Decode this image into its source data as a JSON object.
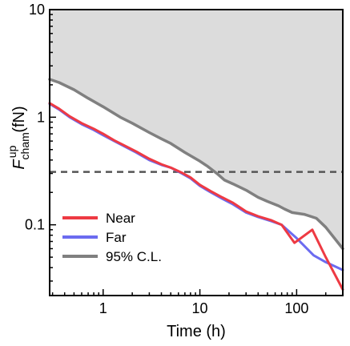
{
  "chart_data": {
    "type": "line",
    "xlabel": "Time (h)",
    "ylabel": {
      "symbol": "F",
      "superscript": "up",
      "subscript": "cham",
      "unit": "(fN)"
    },
    "x_scale": "log",
    "y_scale": "log",
    "xlim": [
      0.28,
      300
    ],
    "ylim": [
      0.022,
      10
    ],
    "x_ticks": [
      {
        "value": 1,
        "label": "1"
      },
      {
        "value": 10,
        "label": "10"
      },
      {
        "value": 100,
        "label": "100"
      }
    ],
    "y_ticks": [
      {
        "value": 0.1,
        "label": "0.1"
      },
      {
        "value": 1,
        "label": "1"
      },
      {
        "value": 10,
        "label": "10"
      }
    ],
    "grid": false,
    "legend_position": "bottom-left",
    "excluded_region": {
      "description_color": "#dcdcdc",
      "bound_series": "95% C.L."
    },
    "reference_line": {
      "y": 0.31,
      "style": "dashed",
      "color": "#555555"
    },
    "series": [
      {
        "name": "Far",
        "color": "#6b6bf0",
        "x": [
          0.28,
          0.35,
          0.45,
          0.6,
          0.8,
          1.0,
          1.3,
          1.7,
          2.2,
          3.0,
          4.0,
          5.0,
          6.5,
          8.0,
          10,
          13,
          17,
          22,
          30,
          40,
          55,
          70,
          100,
          150,
          200,
          300
        ],
        "y": [
          1.33,
          1.18,
          1.0,
          0.86,
          0.76,
          0.68,
          0.6,
          0.53,
          0.47,
          0.4,
          0.36,
          0.34,
          0.3,
          0.27,
          0.23,
          0.2,
          0.175,
          0.155,
          0.13,
          0.118,
          0.108,
          0.1,
          0.075,
          0.052,
          0.045,
          0.038
        ]
      },
      {
        "name": "Near",
        "color": "#ee3a43",
        "x": [
          0.28,
          0.35,
          0.45,
          0.6,
          0.8,
          1.0,
          1.3,
          1.7,
          2.2,
          3.0,
          4.0,
          5.0,
          6.5,
          8.0,
          10,
          13,
          17,
          22,
          30,
          40,
          55,
          70,
          95,
          145,
          200,
          300
        ],
        "y": [
          1.35,
          1.2,
          1.02,
          0.88,
          0.78,
          0.7,
          0.61,
          0.54,
          0.48,
          0.41,
          0.365,
          0.34,
          0.305,
          0.275,
          0.235,
          0.205,
          0.18,
          0.16,
          0.133,
          0.12,
          0.11,
          0.1,
          0.068,
          0.09,
          0.05,
          0.025
        ]
      },
      {
        "name": "95% C.L.",
        "color": "#808080",
        "x": [
          0.28,
          0.35,
          0.5,
          0.7,
          1.0,
          1.5,
          2.0,
          3.0,
          4.0,
          5.0,
          7.0,
          10,
          12,
          15,
          18,
          22,
          30,
          40,
          50,
          65,
          75,
          90,
          120,
          160,
          200,
          300
        ],
        "y": [
          2.25,
          2.1,
          1.8,
          1.5,
          1.25,
          1.0,
          0.88,
          0.72,
          0.63,
          0.57,
          0.47,
          0.39,
          0.35,
          0.3,
          0.26,
          0.24,
          0.21,
          0.18,
          0.165,
          0.15,
          0.14,
          0.13,
          0.125,
          0.115,
          0.095,
          0.06
        ]
      }
    ],
    "legend_order": [
      "Near",
      "Far",
      "95% C.L."
    ]
  }
}
